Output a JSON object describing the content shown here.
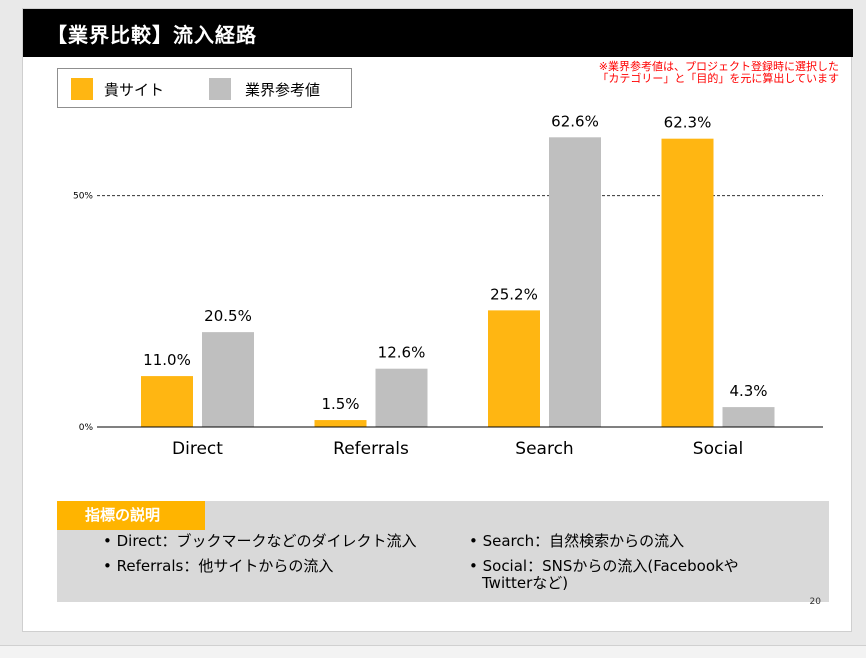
{
  "title": "【業界比較】流入経路",
  "note_lines": [
    "※業界参考値は、プロジェクト登録時に選択した",
    "「カテゴリー」と「目的」を元に算出しています"
  ],
  "legend": [
    {
      "label": "貴サイト",
      "color": "#ffb612"
    },
    {
      "label": "業界参考値",
      "color": "#bfbfbf"
    }
  ],
  "chart_data": {
    "type": "bar",
    "categories": [
      "Direct",
      "Referrals",
      "Search",
      "Social"
    ],
    "series": [
      {
        "name": "貴サイト",
        "color": "#ffb612",
        "values": [
          11.0,
          1.5,
          25.2,
          62.3
        ]
      },
      {
        "name": "業界参考値",
        "color": "#bfbfbf",
        "values": [
          20.5,
          12.6,
          62.6,
          4.3
        ]
      }
    ],
    "value_labels": [
      [
        "11.0%",
        "1.5%",
        "25.2%",
        "62.3%"
      ],
      [
        "20.5%",
        "12.6%",
        "62.6%",
        "4.3%"
      ]
    ],
    "yticks": [
      {
        "value": 0,
        "label": "0%"
      },
      {
        "value": 50,
        "label": "50%"
      }
    ],
    "reference_line": {
      "value": 50,
      "style": "dashed"
    },
    "ylim": [
      0,
      62.6
    ]
  },
  "description": {
    "header": "指標の説明",
    "items": [
      {
        "text": "• Direct：ブックマークなどのダイレクト流入"
      },
      {
        "text": "• Referrals：他サイトからの流入"
      },
      {
        "text": "• Search：自然検索からの流入"
      },
      {
        "text_lines": [
          "• Social：SNSからの流入(Facebookや",
          "Twitterなど)"
        ]
      }
    ]
  },
  "page_number": "20"
}
